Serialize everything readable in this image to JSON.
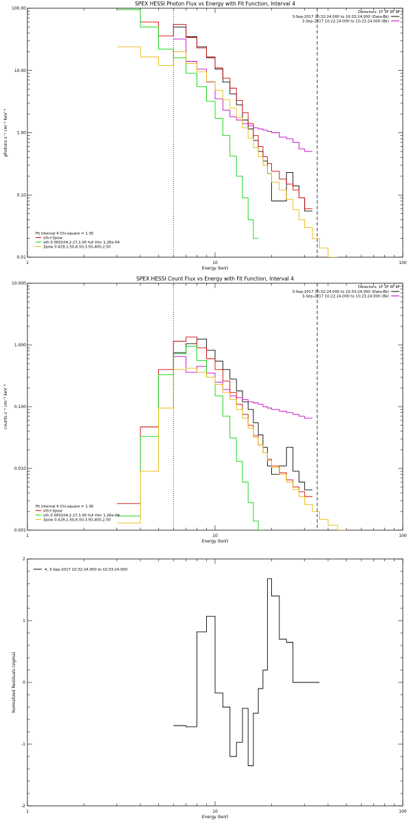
{
  "chart_data": [
    {
      "type": "line",
      "title": "SPEX HESSI Photon Flux vs Energy with Fit Function, Interval 4",
      "xlabel": "Energy (keV)",
      "ylabel": "photons s⁻¹ cm⁻² keV⁻¹",
      "xscale": "log",
      "yscale": "log",
      "xlim": [
        1,
        100
      ],
      "ylim": [
        0.01,
        100
      ],
      "xticks": [
        "1",
        "10",
        "100"
      ],
      "yticks": [
        "0.01",
        "0.10",
        "1.00",
        "10.00",
        "100.00"
      ],
      "detectors": "Detectors: 1F 3F 6F 8F",
      "time_legend": [
        {
          "label": "3-Sep-2017 10:32:24.000 to 10:33:24.000 (Data-Bk)",
          "color": "#000000"
        },
        {
          "label": "3-Sep-2017 10:22:24.000 to 10:23:24.000 (Bk)",
          "color": "#c000c0"
        }
      ],
      "fit_info": "Fit Interval 4   Chi-square = 1.30",
      "fit_legend": [
        {
          "label": "vth+3pow",
          "color": "#d00000"
        },
        {
          "label": "vth 0.000104,2.27,1.00  full thin 1.26e-04",
          "color": "#00d000"
        },
        {
          "label": "3pow 0.429,1.50,6.50,3.93,400,2.50",
          "color": "#e8b800"
        }
      ],
      "vlines": [
        {
          "x": 6.0,
          "style": "dotted"
        },
        {
          "x": 35.0,
          "style": "dashed"
        }
      ],
      "edges": [
        3,
        4,
        5,
        6,
        7,
        8,
        9,
        10,
        11,
        12,
        13,
        14,
        15,
        16,
        17,
        18,
        19,
        20,
        22,
        24,
        26,
        28,
        30,
        33,
        36,
        40,
        45
      ],
      "series": [
        {
          "name": "Data-Bk",
          "color": "#000000",
          "from": 3,
          "to": 23,
          "values": [
            50,
            35,
            24,
            16,
            10.5,
            6.5,
            4.2,
            2.8,
            1.6,
            1.15,
            0.75,
            0.5,
            0.35,
            0.22,
            0.08,
            0.08,
            0.23,
            0.14,
            0.09,
            0.055
          ]
        },
        {
          "name": "Bk",
          "color": "#c000c0",
          "from": 3,
          "to": 23,
          "values": [
            32,
            14,
            10.5,
            6.5,
            3.5,
            2.3,
            1.8,
            1.6,
            1.4,
            1.3,
            1.2,
            1.15,
            1.1,
            1.05,
            1.0,
            0.85,
            0.8,
            0.7,
            0.55,
            0.5
          ]
        },
        {
          "name": "vth+3pow",
          "color": "#d00000",
          "from": 0,
          "to": 23,
          "values": [
            95,
            60,
            36,
            55,
            34,
            23,
            16.5,
            11,
            7.5,
            5.2,
            3.3,
            2.1,
            1.4,
            0.9,
            0.6,
            0.41,
            0.32,
            0.24,
            0.18,
            0.15,
            0.12,
            0.09,
            0.06
          ]
        },
        {
          "name": "vth",
          "color": "#00d000",
          "from": 0,
          "to": 14,
          "values": [
            95,
            50,
            22,
            16,
            9,
            5.5,
            3.2,
            1.7,
            0.9,
            0.42,
            0.2,
            0.09,
            0.04,
            0.02
          ]
        },
        {
          "name": "3pow",
          "color": "#e8b800",
          "from": 0,
          "to": 26,
          "values": [
            24,
            16.5,
            12,
            20,
            13,
            9.5,
            6.6,
            4.8,
            3.4,
            2.5,
            1.75,
            1.2,
            0.82,
            0.58,
            0.41,
            0.3,
            0.22,
            0.16,
            0.12,
            0.085,
            0.058,
            0.04,
            0.03,
            0.02,
            0.014,
            0.01
          ]
        }
      ]
    },
    {
      "type": "line",
      "title": "SPEX HESSI Count Flux vs Energy with Fit Function, Interval 4",
      "xlabel": "Energy (keV)",
      "ylabel": "counts s⁻¹ cm⁻² keV⁻¹",
      "xscale": "log",
      "yscale": "log",
      "xlim": [
        1,
        100
      ],
      "ylim": [
        0.001,
        10
      ],
      "xticks": [
        "1",
        "10",
        "100"
      ],
      "yticks": [
        "0.001",
        "0.010",
        "0.100",
        "1.000",
        "10.000"
      ],
      "detectors": "Detectors: 1F 3F 6F 8F",
      "time_legend": [
        {
          "label": "3-Sep-2017 10:32:24.000 to 10:33:24.000 (Data-Bk)",
          "color": "#000000"
        },
        {
          "label": "3-Sep-2017 10:22:24.000 to 10:23:24.000 (Bk)",
          "color": "#c000c0"
        }
      ],
      "fit_info": "Fit Interval 4   Chi-square = 1.30",
      "fit_legend": [
        {
          "label": "vth+3pow",
          "color": "#d00000"
        },
        {
          "label": "vth 0.000104,2.27,1.00  full thin 1.26e-04",
          "color": "#00d000"
        },
        {
          "label": "3pow 0.429,1.50,6.50,3.93,400,2.50",
          "color": "#e8b800"
        }
      ],
      "vlines": [
        {
          "x": 6.0,
          "style": "dotted"
        },
        {
          "x": 35.0,
          "style": "dashed"
        }
      ],
      "edges": [
        3,
        4,
        5,
        6,
        7,
        8,
        9,
        10,
        11,
        12,
        13,
        14,
        15,
        16,
        17,
        18,
        19,
        20,
        22,
        24,
        26,
        28,
        30,
        33,
        36,
        40,
        45,
        50
      ],
      "series": [
        {
          "name": "Data-Bk",
          "color": "#000000",
          "from": 3,
          "to": 23,
          "values": [
            0.75,
            1.05,
            1.25,
            0.82,
            0.55,
            0.4,
            0.28,
            0.18,
            0.12,
            0.09,
            0.055,
            0.035,
            0.022,
            0.011,
            0.008,
            0.011,
            0.022,
            0.009,
            0.006,
            0.0045
          ]
        },
        {
          "name": "Bk",
          "color": "#c000c0",
          "from": 3,
          "to": 23,
          "values": [
            0.65,
            0.36,
            0.45,
            0.35,
            0.25,
            0.19,
            0.15,
            0.14,
            0.13,
            0.12,
            0.115,
            0.11,
            0.1,
            0.095,
            0.09,
            0.085,
            0.08,
            0.075,
            0.07,
            0.065
          ]
        },
        {
          "name": "vth+3pow",
          "color": "#d00000",
          "from": 0,
          "to": 23,
          "values": [
            0.0027,
            0.047,
            0.4,
            1.15,
            1.35,
            0.9,
            0.6,
            0.4,
            0.26,
            0.17,
            0.11,
            0.075,
            0.05,
            0.034,
            0.024,
            0.018,
            0.014,
            0.011,
            0.0085,
            0.0065,
            0.005,
            0.0042,
            0.0035
          ]
        },
        {
          "name": "vth",
          "color": "#00d000",
          "from": 0,
          "to": 15,
          "values": [
            0.0017,
            0.033,
            0.33,
            0.72,
            0.95,
            0.56,
            0.3,
            0.15,
            0.07,
            0.031,
            0.013,
            0.006,
            0.0028,
            0.0014,
            0.001
          ]
        },
        {
          "name": "3pow",
          "color": "#e8b800",
          "from": 0,
          "to": 27,
          "values": [
            0.0013,
            0.009,
            0.095,
            0.4,
            0.42,
            0.36,
            0.3,
            0.23,
            0.17,
            0.13,
            0.09,
            0.065,
            0.045,
            0.032,
            0.024,
            0.018,
            0.0135,
            0.0104,
            0.008,
            0.006,
            0.0046,
            0.0035,
            0.0026,
            0.002,
            0.0015,
            0.0012,
            0.001
          ]
        }
      ]
    },
    {
      "type": "line",
      "title": "",
      "xlabel": "Energy (keV)",
      "ylabel": "Normalized Residuals (sigma)",
      "xscale": "log",
      "yscale": "linear",
      "xlim": [
        1,
        100
      ],
      "ylim": [
        -2,
        2
      ],
      "xticks": [
        "1",
        "10",
        "100"
      ],
      "yticks": [
        "-2",
        "-1",
        "0",
        "1",
        "2"
      ],
      "legend": [
        {
          "label": "4,  3-Sep-2017 10:32:24.000 to 10:33:24.000",
          "color": "#000000"
        }
      ],
      "edges": [
        6,
        7,
        8,
        9,
        10,
        11,
        12,
        13,
        14,
        15,
        16,
        17,
        18,
        19,
        20,
        22,
        24,
        26,
        28,
        30,
        33,
        36
      ],
      "series": [
        {
          "name": "4",
          "color": "#000000",
          "from": 0,
          "to": 21,
          "values": [
            -0.7,
            -0.72,
            0.82,
            1.07,
            -0.17,
            -0.4,
            -1.2,
            -0.97,
            -0.42,
            -1.35,
            -0.5,
            -0.1,
            0.2,
            1.68,
            1.4,
            0.7,
            0.65,
            0,
            0,
            0,
            0
          ]
        }
      ]
    }
  ]
}
